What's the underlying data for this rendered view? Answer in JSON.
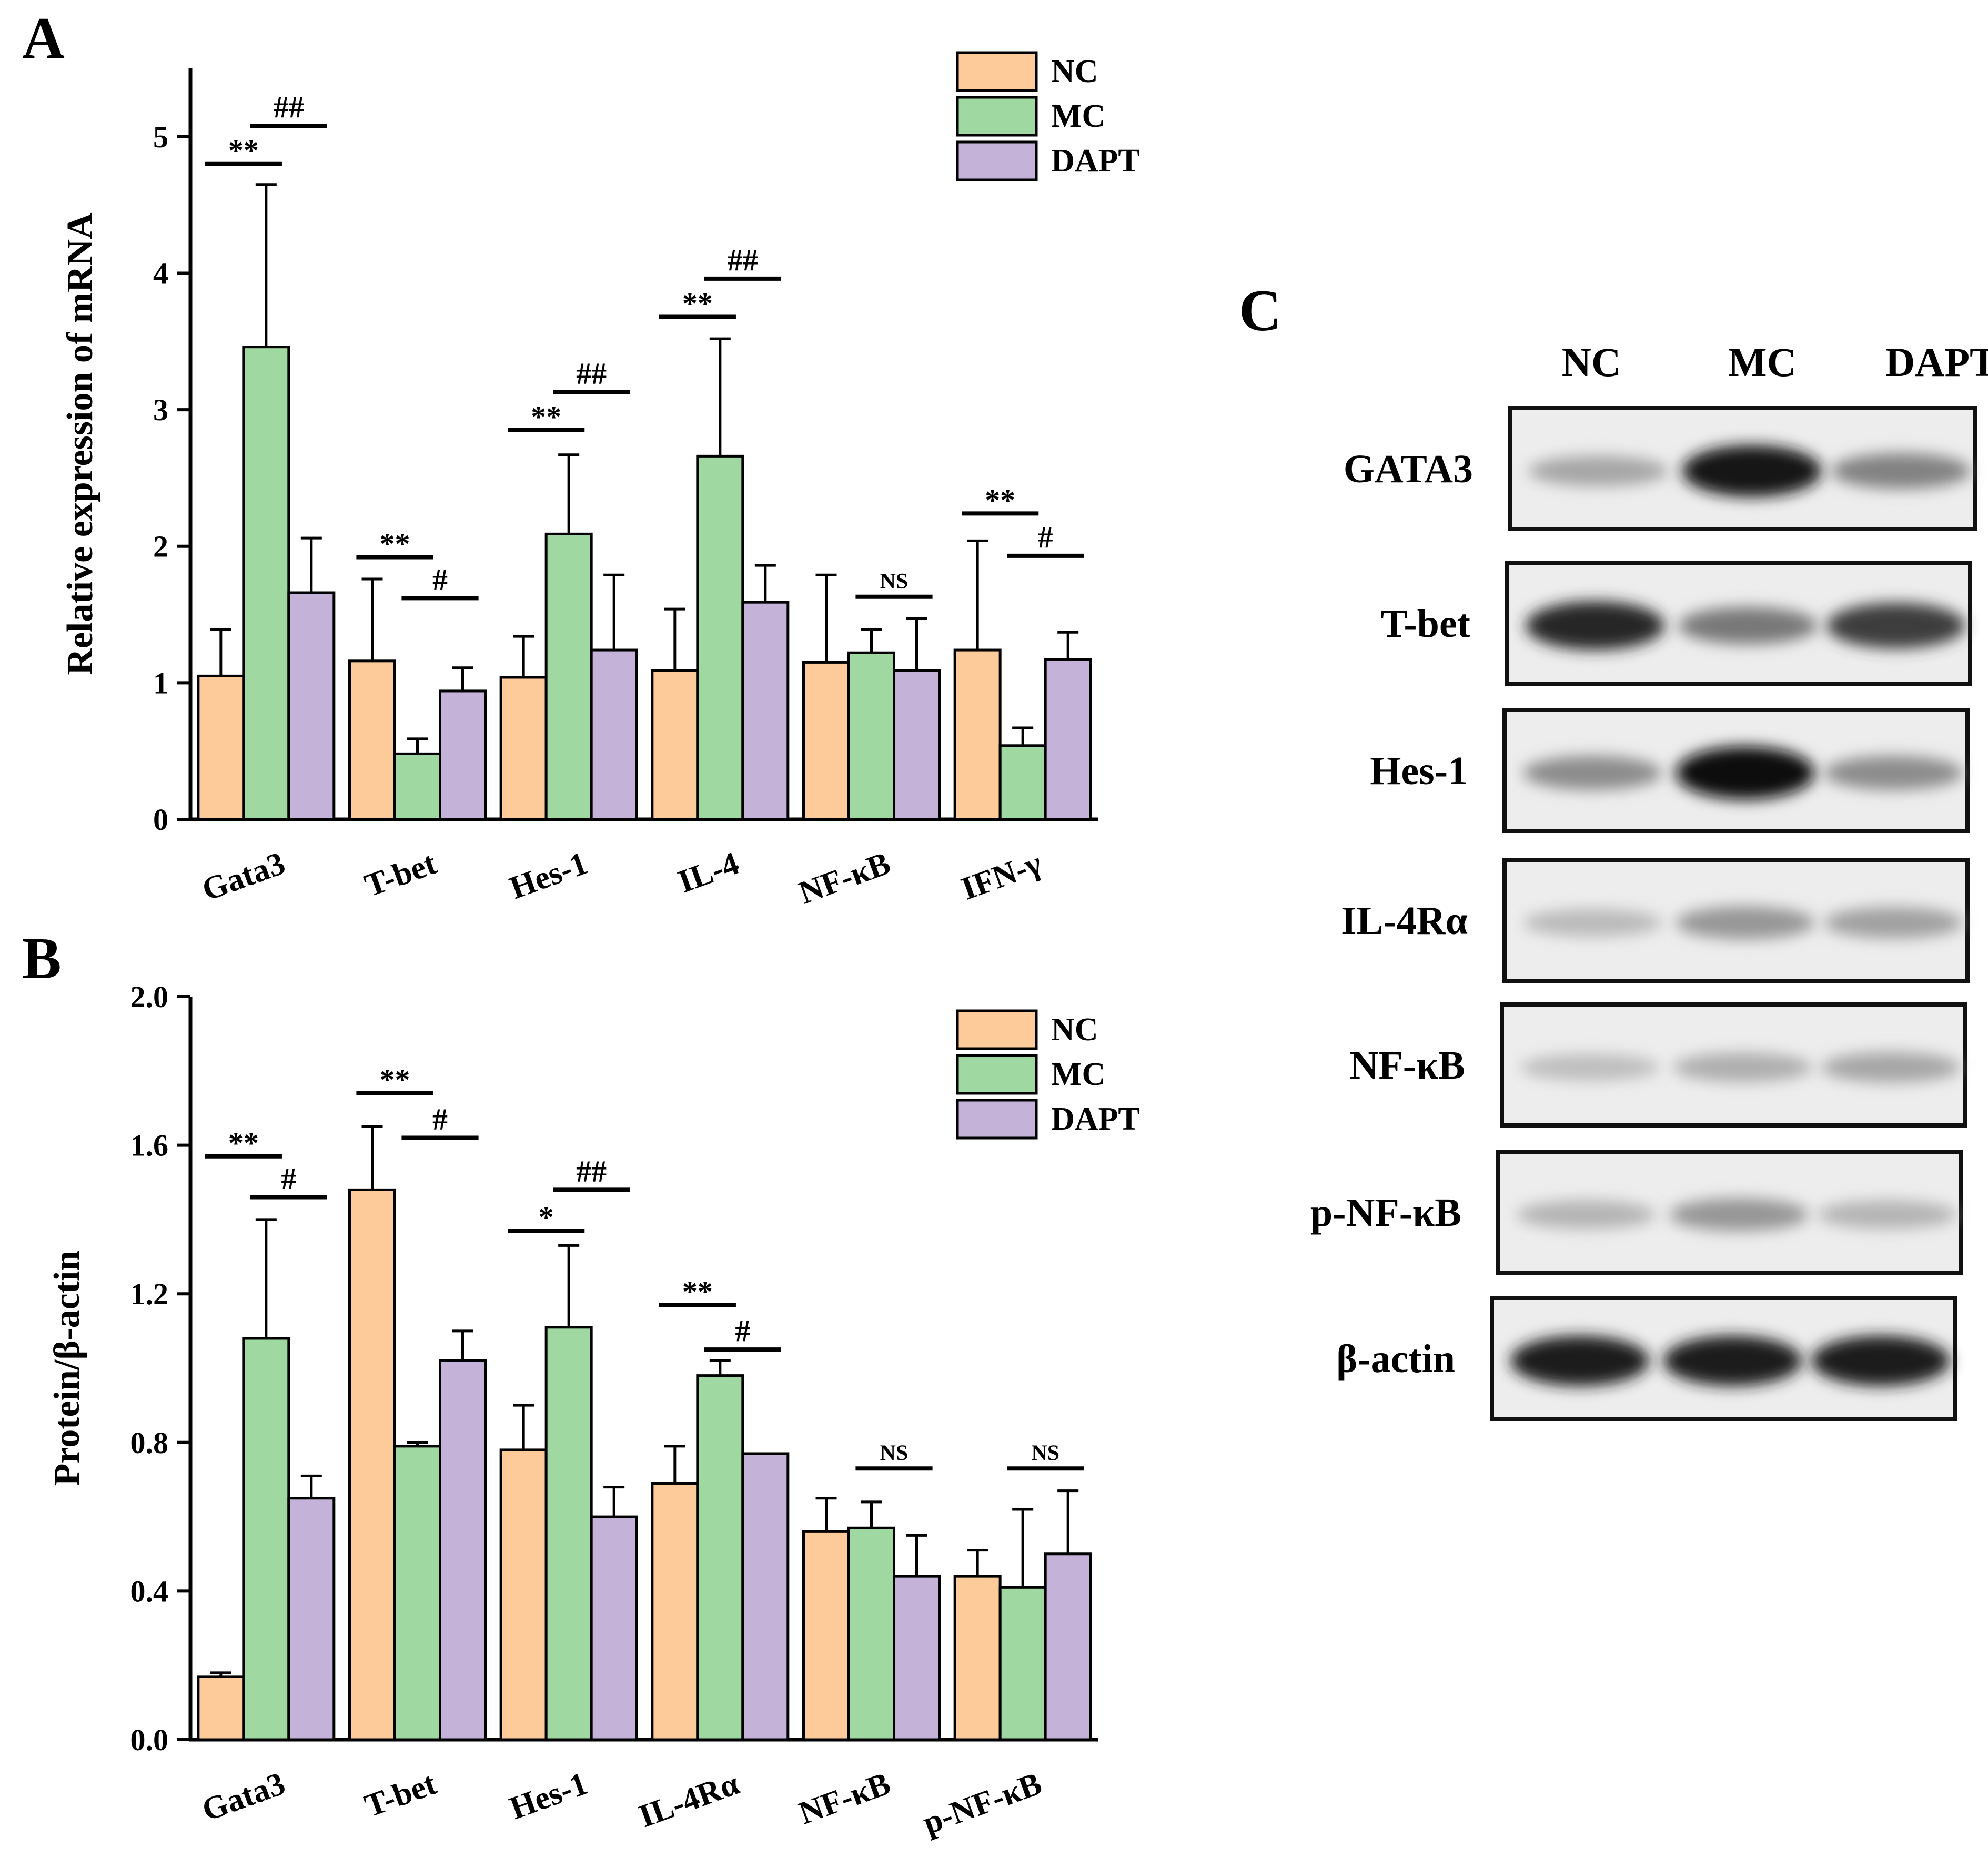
{
  "colors": {
    "NC": "#fdca99",
    "MC": "#9fd8a0",
    "DAPT": "#c4b2d8"
  },
  "panels": {
    "a": "A",
    "b": "B",
    "c": "C"
  },
  "chart_data": [
    {
      "type": "bar",
      "panel": "A",
      "ylabel": "Relative expression of mRNA",
      "xlabel": "",
      "ylim": [
        0,
        5.5
      ],
      "yticks": [
        "0",
        "1",
        "2",
        "3",
        "4",
        "5"
      ],
      "ytick_values": [
        0,
        1,
        2,
        3,
        4,
        5
      ],
      "legend_position": "top-right",
      "categories": [
        "Gata3",
        "T-bet",
        "Hes-1",
        "IL-4",
        "NF-κB",
        "IFN-γ"
      ],
      "series": [
        {
          "name": "NC",
          "values": [
            1.05,
            1.16,
            1.04,
            1.09,
            1.15,
            1.24
          ],
          "errors": [
            0.34,
            0.6,
            0.3,
            0.45,
            0.64,
            0.8
          ]
        },
        {
          "name": "MC",
          "values": [
            3.46,
            0.48,
            2.09,
            2.66,
            1.22,
            0.54
          ],
          "errors": [
            1.19,
            0.11,
            0.58,
            0.86,
            0.17,
            0.13
          ]
        },
        {
          "name": "DAPT",
          "values": [
            1.66,
            0.94,
            1.24,
            1.59,
            1.09,
            1.17
          ],
          "errors": [
            0.4,
            0.17,
            0.55,
            0.27,
            0.38,
            0.2
          ]
        }
      ],
      "annotations": [
        {
          "label": "**",
          "category": 0,
          "pair": "NC-MC",
          "y": 4.8
        },
        {
          "label": "##",
          "category": 0,
          "pair": "MC-DAPT",
          "y": 5.08
        },
        {
          "label": "**",
          "category": 1,
          "pair": "NC-MC",
          "y": 1.92
        },
        {
          "label": "#",
          "category": 1,
          "pair": "MC-DAPT",
          "y": 1.62
        },
        {
          "label": "**",
          "category": 2,
          "pair": "NC-MC",
          "y": 2.85
        },
        {
          "label": "##",
          "category": 2,
          "pair": "MC-DAPT",
          "y": 3.13
        },
        {
          "label": "**",
          "category": 3,
          "pair": "NC-MC",
          "y": 3.68
        },
        {
          "label": "##",
          "category": 3,
          "pair": "MC-DAPT",
          "y": 3.96
        },
        {
          "label": "NS",
          "category": 4,
          "pair": "MC-DAPT",
          "y": 1.63
        },
        {
          "label": "**",
          "category": 5,
          "pair": "NC-MC",
          "y": 2.24
        },
        {
          "label": "#",
          "category": 5,
          "pair": "MC-DAPT",
          "y": 1.93
        }
      ]
    },
    {
      "type": "bar",
      "panel": "B",
      "ylabel": "Protein/β-actin",
      "xlabel": "",
      "ylim": [
        0,
        2.0
      ],
      "yticks": [
        "0.0",
        "0.4",
        "0.8",
        "1.2",
        "1.6",
        "2.0"
      ],
      "ytick_values": [
        0,
        0.4,
        0.8,
        1.2,
        1.6,
        2.0
      ],
      "legend_position": "top-right",
      "categories": [
        "Gata3",
        "T-bet",
        "Hes-1",
        "IL-4Rα",
        "NF-κB",
        "p-NF-κB"
      ],
      "series": [
        {
          "name": "NC",
          "values": [
            0.17,
            1.48,
            0.78,
            0.69,
            0.56,
            0.44
          ],
          "errors": [
            0.01,
            0.17,
            0.12,
            0.1,
            0.09,
            0.07
          ]
        },
        {
          "name": "MC",
          "values": [
            1.08,
            0.79,
            1.11,
            0.98,
            0.57,
            0.41
          ],
          "errors": [
            0.32,
            0.01,
            0.22,
            0.04,
            0.07,
            0.21
          ]
        },
        {
          "name": "DAPT",
          "values": [
            0.65,
            1.02,
            0.6,
            0.77,
            0.44,
            0.5
          ],
          "errors": [
            0.06,
            0.08,
            0.08,
            0.0,
            0.11,
            0.17
          ]
        }
      ],
      "annotations": [
        {
          "label": "**",
          "category": 0,
          "pair": "NC-MC",
          "y": 1.57
        },
        {
          "label": "#",
          "category": 0,
          "pair": "MC-DAPT",
          "y": 1.46
        },
        {
          "label": "**",
          "category": 1,
          "pair": "NC-MC",
          "y": 1.74
        },
        {
          "label": "#",
          "category": 1,
          "pair": "MC-DAPT",
          "y": 1.62
        },
        {
          "label": "*",
          "category": 2,
          "pair": "NC-MC",
          "y": 1.37
        },
        {
          "label": "##",
          "category": 2,
          "pair": "MC-DAPT",
          "y": 1.48
        },
        {
          "label": "**",
          "category": 3,
          "pair": "NC-MC",
          "y": 1.17
        },
        {
          "label": "#",
          "category": 3,
          "pair": "MC-DAPT",
          "y": 1.05
        },
        {
          "label": "NS",
          "category": 4,
          "pair": "MC-DAPT",
          "y": 0.73
        },
        {
          "label": "NS",
          "category": 5,
          "pair": "MC-DAPT",
          "y": 0.73
        }
      ]
    }
  ],
  "blot": {
    "columns": [
      "NC",
      "MC",
      "DAPT"
    ],
    "rows": [
      {
        "label": "GATA3",
        "bands": [
          0.22,
          0.95,
          0.4
        ]
      },
      {
        "label": "T-bet",
        "bands": [
          0.85,
          0.45,
          0.75
        ]
      },
      {
        "label": "Hes-1",
        "bands": [
          0.35,
          1.0,
          0.35
        ]
      },
      {
        "label": "IL-4Rα",
        "bands": [
          0.12,
          0.3,
          0.25
        ]
      },
      {
        "label": "NF-κB",
        "bands": [
          0.1,
          0.18,
          0.22
        ]
      },
      {
        "label": "p-NF-κB",
        "bands": [
          0.15,
          0.3,
          0.15
        ]
      },
      {
        "label": "β-actin",
        "bands": [
          0.9,
          0.9,
          0.9
        ]
      }
    ]
  }
}
